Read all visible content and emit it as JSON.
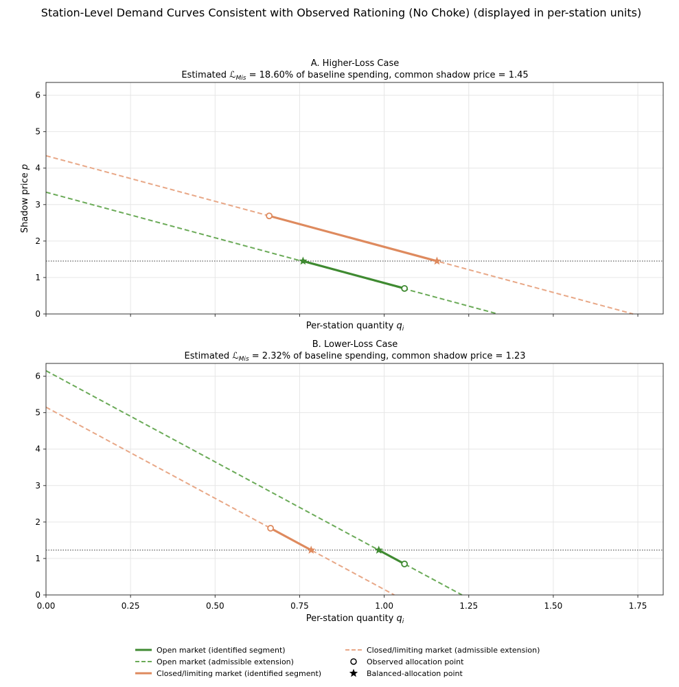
{
  "figure_title": "Station-Level Demand Curves Consistent with Observed Rationing (No Choke) (displayed in per-station units)",
  "colors": {
    "open": "#3f8a31",
    "open_ext": "#6aaa57",
    "closed": "#de8a5e",
    "closed_ext": "#e8a786",
    "ref": "#333333",
    "grid": "#e6e6e6"
  },
  "legend": {
    "open_identified": "Open market (identified segment)",
    "open_extension": "Open market (admissible extension)",
    "closed_identified": "Closed/limiting market (identified segment)",
    "closed_extension": "Closed/limiting market (admissible extension)",
    "observed": "Observed allocation point",
    "balanced": "Balanced-allocation point"
  },
  "chart_data": [
    {
      "type": "line",
      "title": "A. Higher-Loss Case",
      "subtitle_pre": "Estimated ",
      "subtitle_symbol": "ℒ",
      "subtitle_sub": "Mis",
      "subtitle_post": " = 18.60% of baseline spending, common shadow price = 1.45",
      "xlabel_pre": "Per-station quantity ",
      "xlabel_var": "q",
      "xlabel_sub": "i",
      "ylabel_pre": "Shadow price ",
      "ylabel_var": "p",
      "xlim": [
        0,
        1.825
      ],
      "ylim": [
        0,
        6.35
      ],
      "yticks": [
        "0",
        "1",
        "2",
        "3",
        "4",
        "5",
        "6"
      ],
      "xticks_labels_shown": false,
      "shadow_price": 1.45,
      "series": [
        {
          "name": "Open market",
          "intercept": 3.34,
          "slope": -2.5,
          "x_end": 1.336,
          "identified": {
            "x1": 0.76,
            "y1": 1.45,
            "x2": 1.06,
            "y2": 0.7
          },
          "observed": {
            "x": 1.06,
            "y": 0.7
          },
          "balanced": {
            "x": 0.76,
            "y": 1.45
          }
        },
        {
          "name": "Closed/limiting market",
          "intercept": 4.34,
          "slope": -2.5,
          "x_end": 1.736,
          "identified": {
            "x1": 0.66,
            "y1": 2.69,
            "x2": 1.156,
            "y2": 1.45
          },
          "observed": {
            "x": 0.66,
            "y": 2.69
          },
          "balanced": {
            "x": 1.156,
            "y": 1.45
          }
        }
      ]
    },
    {
      "type": "line",
      "title": "B. Lower-Loss Case",
      "subtitle_pre": "Estimated ",
      "subtitle_symbol": "ℒ",
      "subtitle_sub": "Mis",
      "subtitle_post": " = 2.32% of baseline spending, common shadow price = 1.23",
      "xlabel_pre": "Per-station quantity ",
      "xlabel_var": "q",
      "xlabel_sub": "i",
      "xlim": [
        0,
        1.825
      ],
      "ylim": [
        0,
        6.35
      ],
      "xticks": [
        "0.00",
        "0.25",
        "0.50",
        "0.75",
        "1.00",
        "1.25",
        "1.50",
        "1.75"
      ],
      "yticks": [
        "0",
        "1",
        "2",
        "3",
        "4",
        "5",
        "6"
      ],
      "shadow_price": 1.23,
      "series": [
        {
          "name": "Open market",
          "intercept": 6.15,
          "slope": -5.0,
          "x_end": 1.23,
          "identified": {
            "x1": 0.984,
            "y1": 1.23,
            "x2": 1.06,
            "y2": 0.85
          },
          "observed": {
            "x": 1.06,
            "y": 0.85
          },
          "balanced": {
            "x": 0.984,
            "y": 1.23
          }
        },
        {
          "name": "Closed/limiting market",
          "intercept": 5.15,
          "slope": -5.0,
          "x_end": 1.03,
          "identified": {
            "x1": 0.664,
            "y1": 1.83,
            "x2": 0.784,
            "y2": 1.23
          },
          "observed": {
            "x": 0.664,
            "y": 1.83
          },
          "balanced": {
            "x": 0.784,
            "y": 1.23
          }
        }
      ]
    }
  ]
}
